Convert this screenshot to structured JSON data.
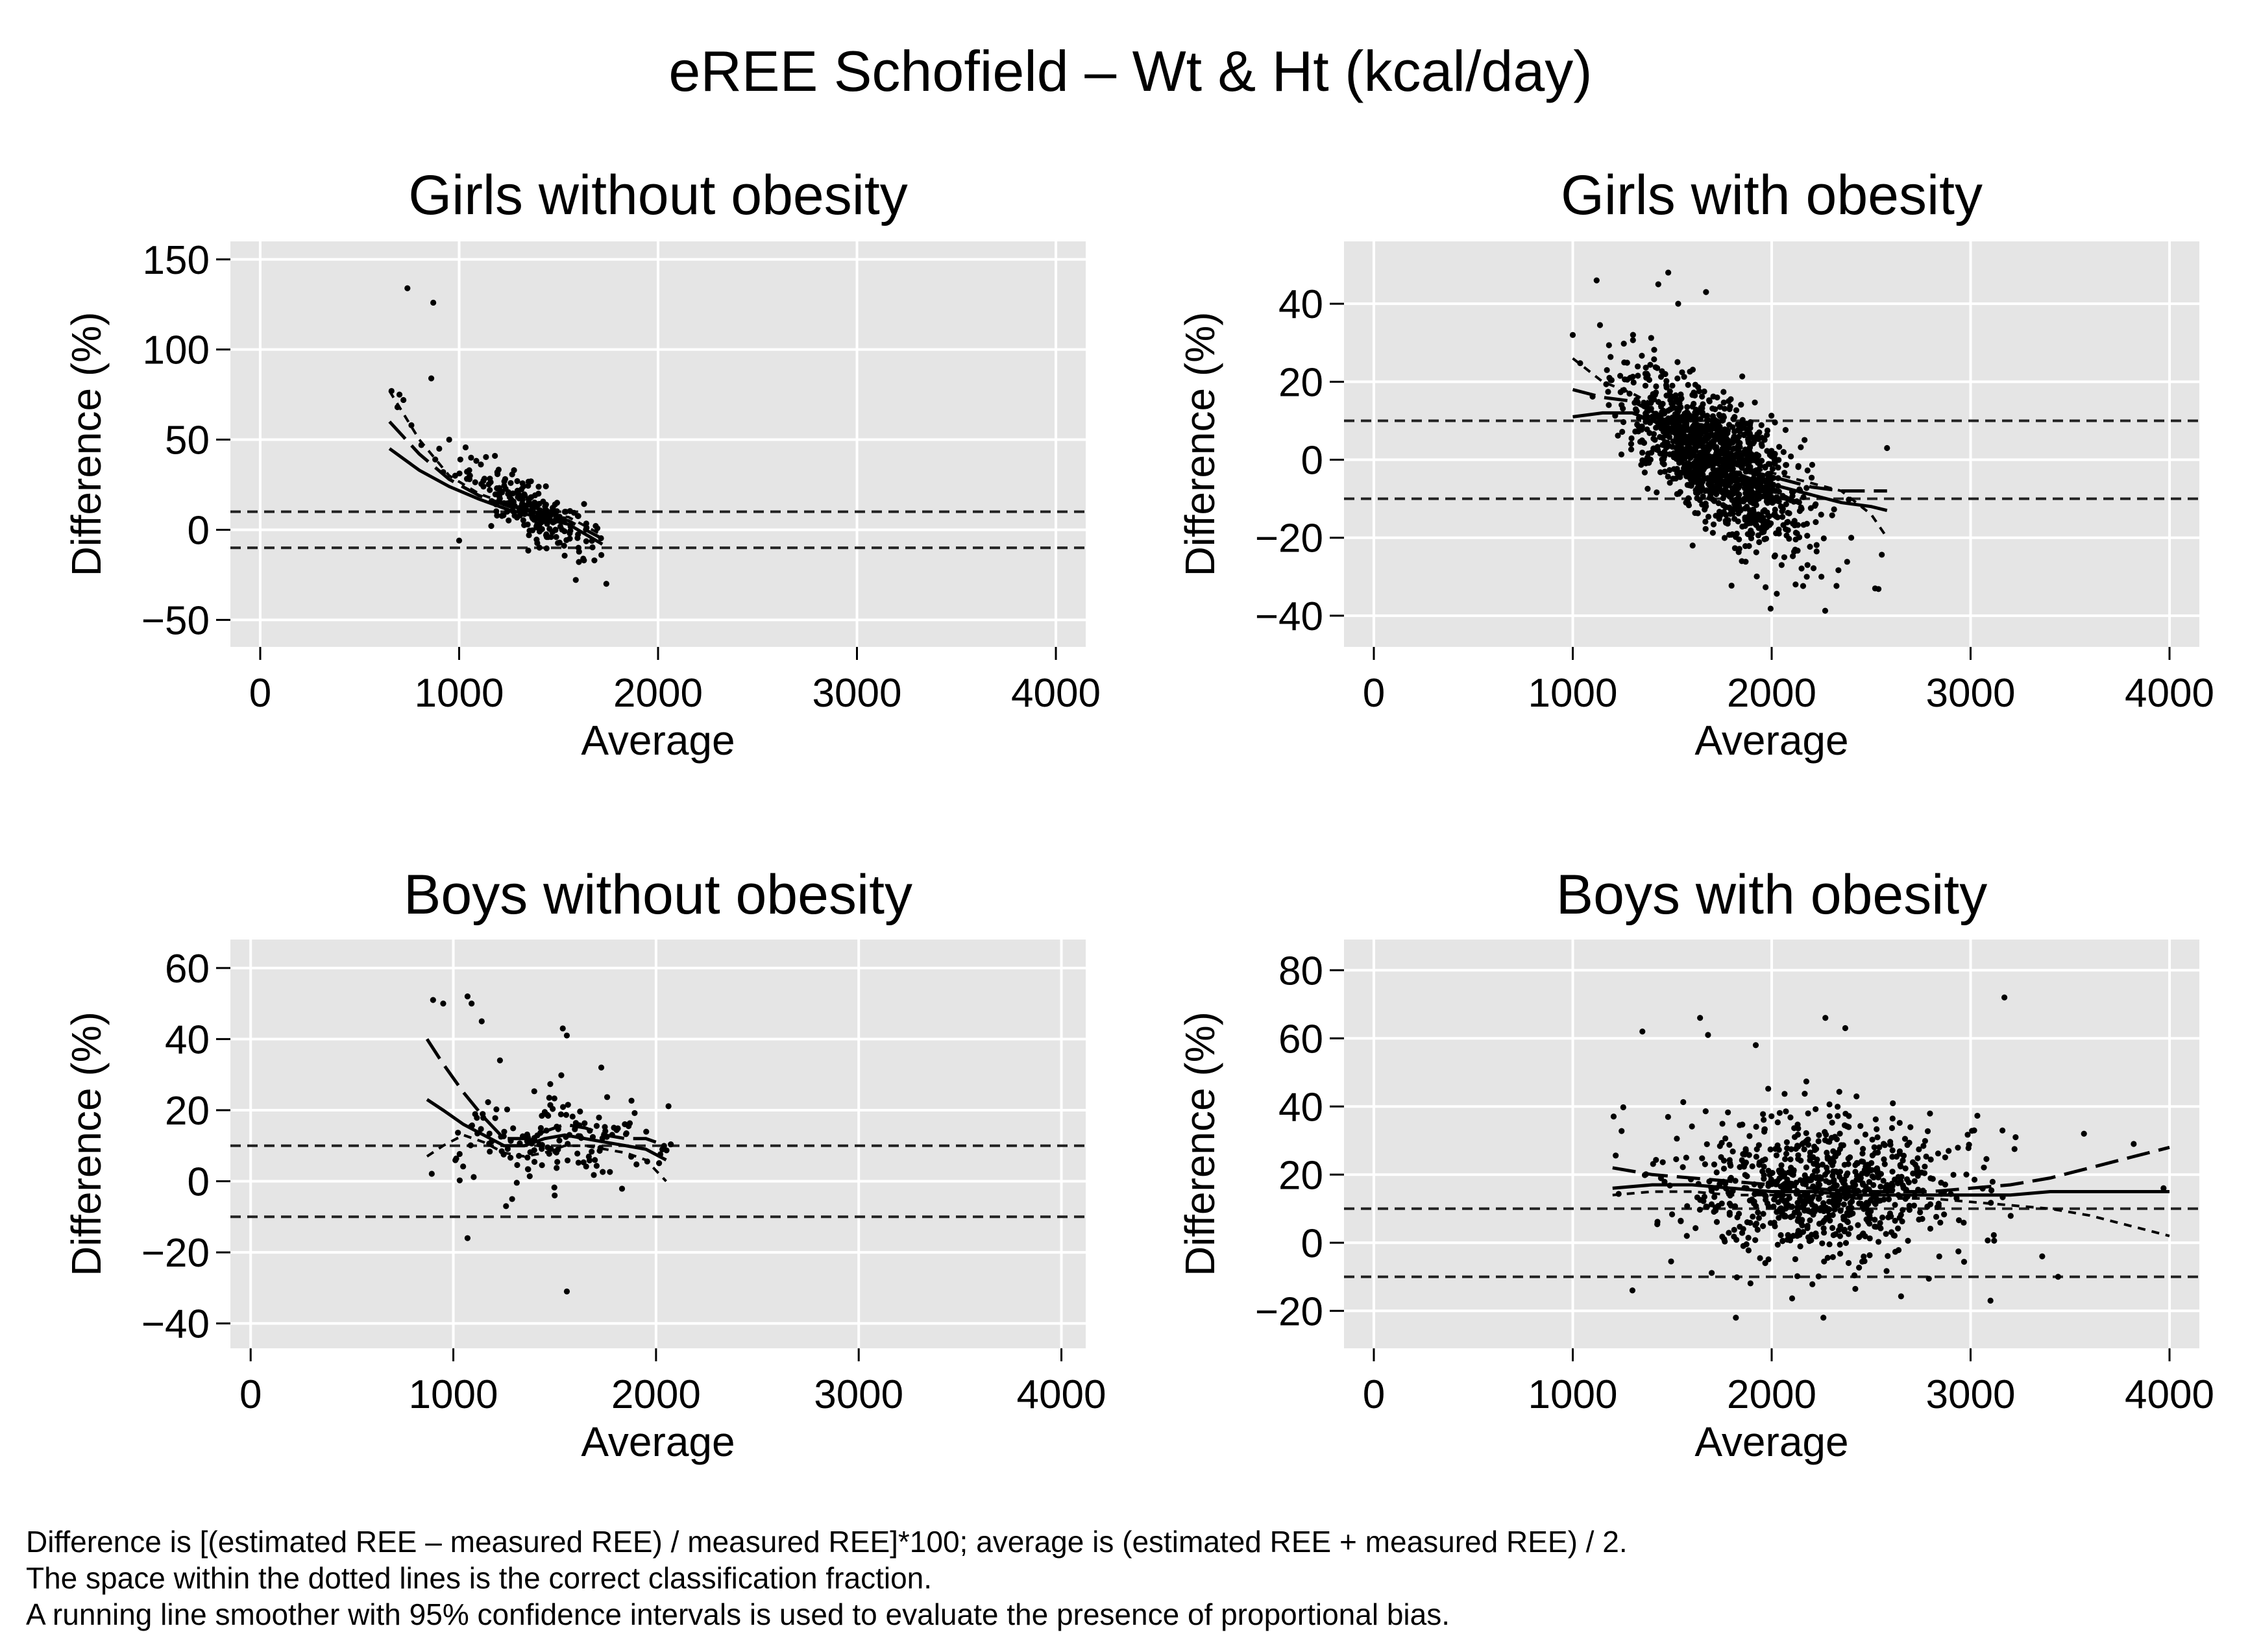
{
  "title": "eREE Schofield – Wt & Ht (kcal/day)",
  "colors": {
    "plot_bg": "#e5e5e5",
    "grid": "#ffffff",
    "marker": "#000000",
    "text": "#000000"
  },
  "chart_data": [
    {
      "type": "scatter",
      "title": "Girls without obesity",
      "xlabel": "Average",
      "ylabel": "Difference (%)",
      "xlim": [
        -150,
        4150
      ],
      "ylim": [
        -65,
        160
      ],
      "xticks": [
        0,
        1000,
        2000,
        3000,
        4000
      ],
      "yticks": [
        150,
        100,
        50,
        0,
        -50
      ],
      "reference_lines": [
        10,
        -10
      ],
      "smoother": {
        "x": [
          650,
          800,
          950,
          1100,
          1250,
          1400,
          1550,
          1720
        ],
        "y": [
          45,
          33,
          24,
          17,
          11,
          7,
          3,
          -8
        ]
      },
      "ci_upper": {
        "x": [
          650,
          800,
          950,
          1100,
          1250,
          1400,
          1550,
          1720
        ],
        "y": [
          60,
          42,
          28,
          19,
          13,
          9,
          5,
          -5
        ]
      },
      "ci_lower": {
        "x": [
          650,
          800,
          950,
          1100,
          1250,
          1400,
          1550,
          1720
        ],
        "y": [
          77,
          50,
          30,
          20,
          14,
          10,
          7,
          -3
        ]
      },
      "cloud": {
        "n": 220,
        "x_mean": 1380,
        "x_sd": 160,
        "y_intercept": 95,
        "y_slope": -0.062,
        "y_sd": 7,
        "x_min": 1000,
        "x_max": 1720
      },
      "points": [
        [
          740,
          134
        ],
        [
          870,
          126
        ],
        [
          860,
          84
        ],
        [
          660,
          77
        ],
        [
          700,
          75
        ],
        [
          720,
          72
        ],
        [
          690,
          68
        ],
        [
          760,
          58
        ],
        [
          810,
          47
        ],
        [
          900,
          45
        ],
        [
          950,
          50
        ],
        [
          880,
          39
        ],
        [
          920,
          32
        ],
        [
          980,
          30
        ],
        [
          1740,
          -30
        ],
        [
          1680,
          -17
        ],
        [
          1600,
          -10
        ],
        [
          1060,
          40
        ],
        [
          1180,
          41
        ],
        [
          1000,
          -6
        ]
      ]
    },
    {
      "type": "scatter",
      "title": "Girls with obesity",
      "xlabel": "Average",
      "ylabel": "Difference (%)",
      "xlim": [
        -150,
        4150
      ],
      "ylim": [
        -48,
        56
      ],
      "xticks": [
        0,
        1000,
        2000,
        3000,
        4000
      ],
      "yticks": [
        40,
        20,
        0,
        -20,
        -40
      ],
      "reference_lines": [
        10,
        -10
      ],
      "smoother": {
        "x": [
          1000,
          1150,
          1300,
          1450,
          1600,
          1750,
          1900,
          2050,
          2200,
          2350,
          2500,
          2580
        ],
        "y": [
          11,
          12,
          12,
          9,
          3,
          -2,
          -5,
          -7,
          -9,
          -11,
          -12,
          -13
        ]
      },
      "ci_upper": {
        "x": [
          1000,
          1150,
          1300,
          1450,
          1600,
          1750,
          1900,
          2050,
          2200,
          2350,
          2500,
          2580
        ],
        "y": [
          18,
          16,
          15,
          11,
          5,
          0,
          -3,
          -5,
          -7,
          -8,
          -8,
          -8
        ]
      },
      "ci_lower": {
        "x": [
          1000,
          1150,
          1300,
          1450,
          1600,
          1750,
          1900,
          2050,
          2200,
          2350,
          2500,
          2580
        ],
        "y": [
          26,
          20,
          17,
          13,
          7,
          2,
          -2,
          -4,
          -6,
          -8,
          -14,
          -20
        ]
      },
      "cloud": {
        "n": 1300,
        "x_mean": 1720,
        "x_sd": 220,
        "y_intercept": 60,
        "y_slope": -0.035,
        "y_sd": 8,
        "x_min": 1000,
        "x_max": 2600
      },
      "points": [
        [
          1000,
          32
        ],
        [
          1120,
          46
        ],
        [
          1480,
          48
        ],
        [
          1430,
          45
        ],
        [
          1530,
          40
        ],
        [
          1670,
          43
        ],
        [
          2580,
          3
        ],
        [
          2520,
          -33
        ],
        [
          2250,
          -30
        ],
        [
          2180,
          -27
        ],
        [
          1850,
          -26
        ],
        [
          2400,
          -20
        ],
        [
          2050,
          -27
        ]
      ]
    },
    {
      "type": "scatter",
      "title": "Boys without obesity",
      "xlabel": "Average",
      "ylabel": "Difference (%)",
      "xlim": [
        -100,
        4120
      ],
      "ylim": [
        -47,
        68
      ],
      "xticks": [
        0,
        1000,
        2000,
        3000,
        4000
      ],
      "yticks": [
        60,
        40,
        20,
        0,
        -20,
        -40
      ],
      "reference_lines": [
        10,
        -10
      ],
      "smoother": {
        "x": [
          870,
          950,
          1050,
          1150,
          1250,
          1350,
          1450,
          1550,
          1650,
          1750,
          1850,
          1950,
          2050
        ],
        "y": [
          23,
          20,
          16,
          13,
          10,
          10,
          12,
          13,
          12,
          11,
          10,
          9,
          6
        ]
      },
      "ci_upper": {
        "x": [
          870,
          950,
          1050,
          1150,
          1250,
          1350,
          1450,
          1550,
          1650,
          1750,
          1850,
          1950,
          2050
        ],
        "y": [
          40,
          33,
          25,
          18,
          12,
          12,
          14,
          16,
          15,
          13,
          12,
          12,
          10
        ]
      },
      "ci_lower": {
        "x": [
          870,
          950,
          1050,
          1150,
          1250,
          1350,
          1450,
          1550,
          1650,
          1750,
          1850,
          1950,
          2050
        ],
        "y": [
          7,
          10,
          13,
          11,
          8,
          7,
          8,
          10,
          10,
          9,
          8,
          6,
          0
        ]
      },
      "cloud": {
        "n": 150,
        "x_mean": 1500,
        "x_sd": 280,
        "y_intercept": 12,
        "y_slope": 0,
        "y_sd": 6,
        "x_min": 880,
        "x_max": 2080
      },
      "points": [
        [
          900,
          51
        ],
        [
          950,
          50
        ],
        [
          1070,
          52
        ],
        [
          1090,
          50
        ],
        [
          1140,
          45
        ],
        [
          1230,
          34
        ],
        [
          1540,
          43
        ],
        [
          1560,
          41
        ],
        [
          1730,
          32
        ],
        [
          1560,
          -31
        ],
        [
          1070,
          -16
        ],
        [
          1260,
          -7
        ],
        [
          1290,
          -5
        ],
        [
          1500,
          -4
        ]
      ]
    },
    {
      "type": "scatter",
      "title": "Boys with obesity",
      "xlabel": "Average",
      "ylabel": "Difference (%)",
      "xlim": [
        -150,
        4150
      ],
      "ylim": [
        -31,
        89
      ],
      "xticks": [
        0,
        1000,
        2000,
        3000,
        4000
      ],
      "yticks": [
        80,
        60,
        40,
        20,
        0,
        -20
      ],
      "reference_lines": [
        10,
        -10
      ],
      "smoother": {
        "x": [
          1200,
          1400,
          1600,
          1800,
          2000,
          2200,
          2400,
          2600,
          2800,
          3000,
          3200,
          3400,
          3600,
          3800,
          4000
        ],
        "y": [
          16,
          17,
          17,
          16,
          15,
          15,
          14,
          14,
          14,
          14,
          14,
          15,
          15,
          15,
          15
        ]
      },
      "ci_upper": {
        "x": [
          1200,
          1400,
          1600,
          1800,
          2000,
          2200,
          2400,
          2600,
          2800,
          3000,
          3200,
          3400,
          3600,
          3800,
          4000
        ],
        "y": [
          22,
          20,
          19,
          18,
          17,
          16,
          15,
          15,
          15,
          16,
          17,
          19,
          22,
          25,
          28
        ]
      },
      "ci_lower": {
        "x": [
          1200,
          1400,
          1600,
          1800,
          2000,
          2200,
          2400,
          2600,
          2800,
          3000,
          3200,
          3400,
          3600,
          3800,
          4000
        ],
        "y": [
          14,
          15,
          15,
          14,
          14,
          14,
          13,
          13,
          13,
          12,
          11,
          10,
          8,
          5,
          2
        ]
      },
      "cloud": {
        "n": 800,
        "x_mean": 2250,
        "x_sd": 370,
        "y_intercept": 16,
        "y_slope": 0,
        "y_sd": 11,
        "x_min": 1200,
        "x_max": 3250
      },
      "points": [
        [
          1640,
          66
        ],
        [
          1680,
          61
        ],
        [
          1350,
          62
        ],
        [
          1920,
          58
        ],
        [
          2270,
          66
        ],
        [
          2370,
          63
        ],
        [
          3170,
          72
        ],
        [
          3570,
          32
        ],
        [
          3820,
          29
        ],
        [
          3970,
          16
        ],
        [
          3440,
          -10
        ],
        [
          3360,
          -4
        ],
        [
          1820,
          -22
        ],
        [
          2260,
          -22
        ],
        [
          1300,
          -14
        ],
        [
          3100,
          -17
        ]
      ]
    }
  ],
  "footnotes": [
    "Difference is [(estimated REE – measured REE) / measured REE]*100; average is (estimated REE + measured REE) / 2.",
    "The space within the dotted lines is the correct classification fraction.",
    "A running line smoother with 95% confidence intervals is used to evaluate the presence of proportional bias."
  ]
}
